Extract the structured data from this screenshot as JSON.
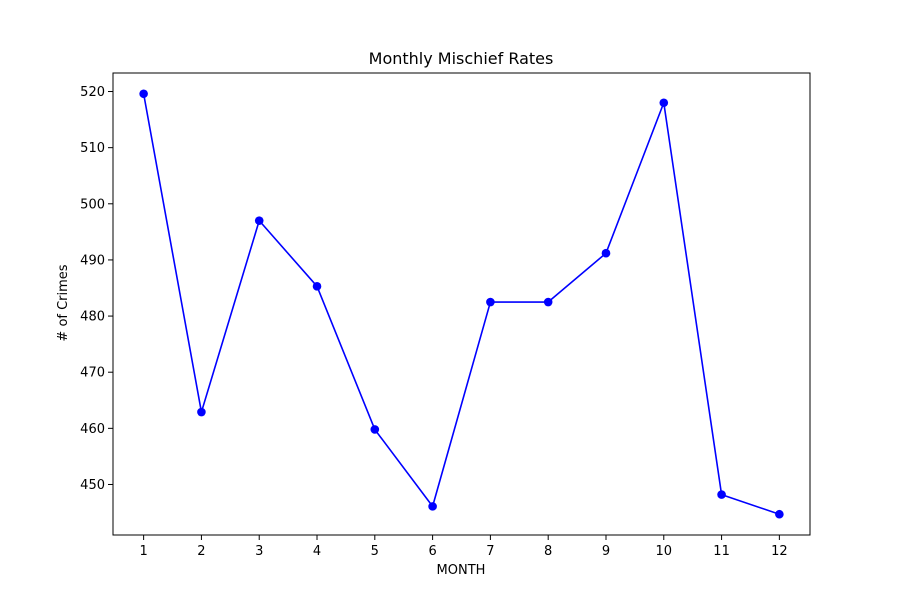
{
  "chart_data": {
    "type": "line",
    "title": "Monthly Mischief Rates",
    "xlabel": "MONTH",
    "ylabel": "# of Crimes",
    "x": [
      1,
      2,
      3,
      4,
      5,
      6,
      7,
      8,
      9,
      10,
      11,
      12
    ],
    "series": [
      {
        "values": [
          519.6,
          462.9,
          497.0,
          485.3,
          459.8,
          446.1,
          482.5,
          482.5,
          491.2,
          518.0,
          448.2,
          444.7
        ],
        "color": "#0000ff",
        "marker": "circle"
      }
    ],
    "xlim": [
      0.47,
      12.53
    ],
    "ylim": [
      441.0,
      523.3
    ],
    "xticks": [
      1,
      2,
      3,
      4,
      5,
      6,
      7,
      8,
      9,
      10,
      11,
      12
    ],
    "yticks": [
      450,
      460,
      470,
      480,
      490,
      500,
      510,
      520
    ],
    "grid": false,
    "legend": false
  }
}
